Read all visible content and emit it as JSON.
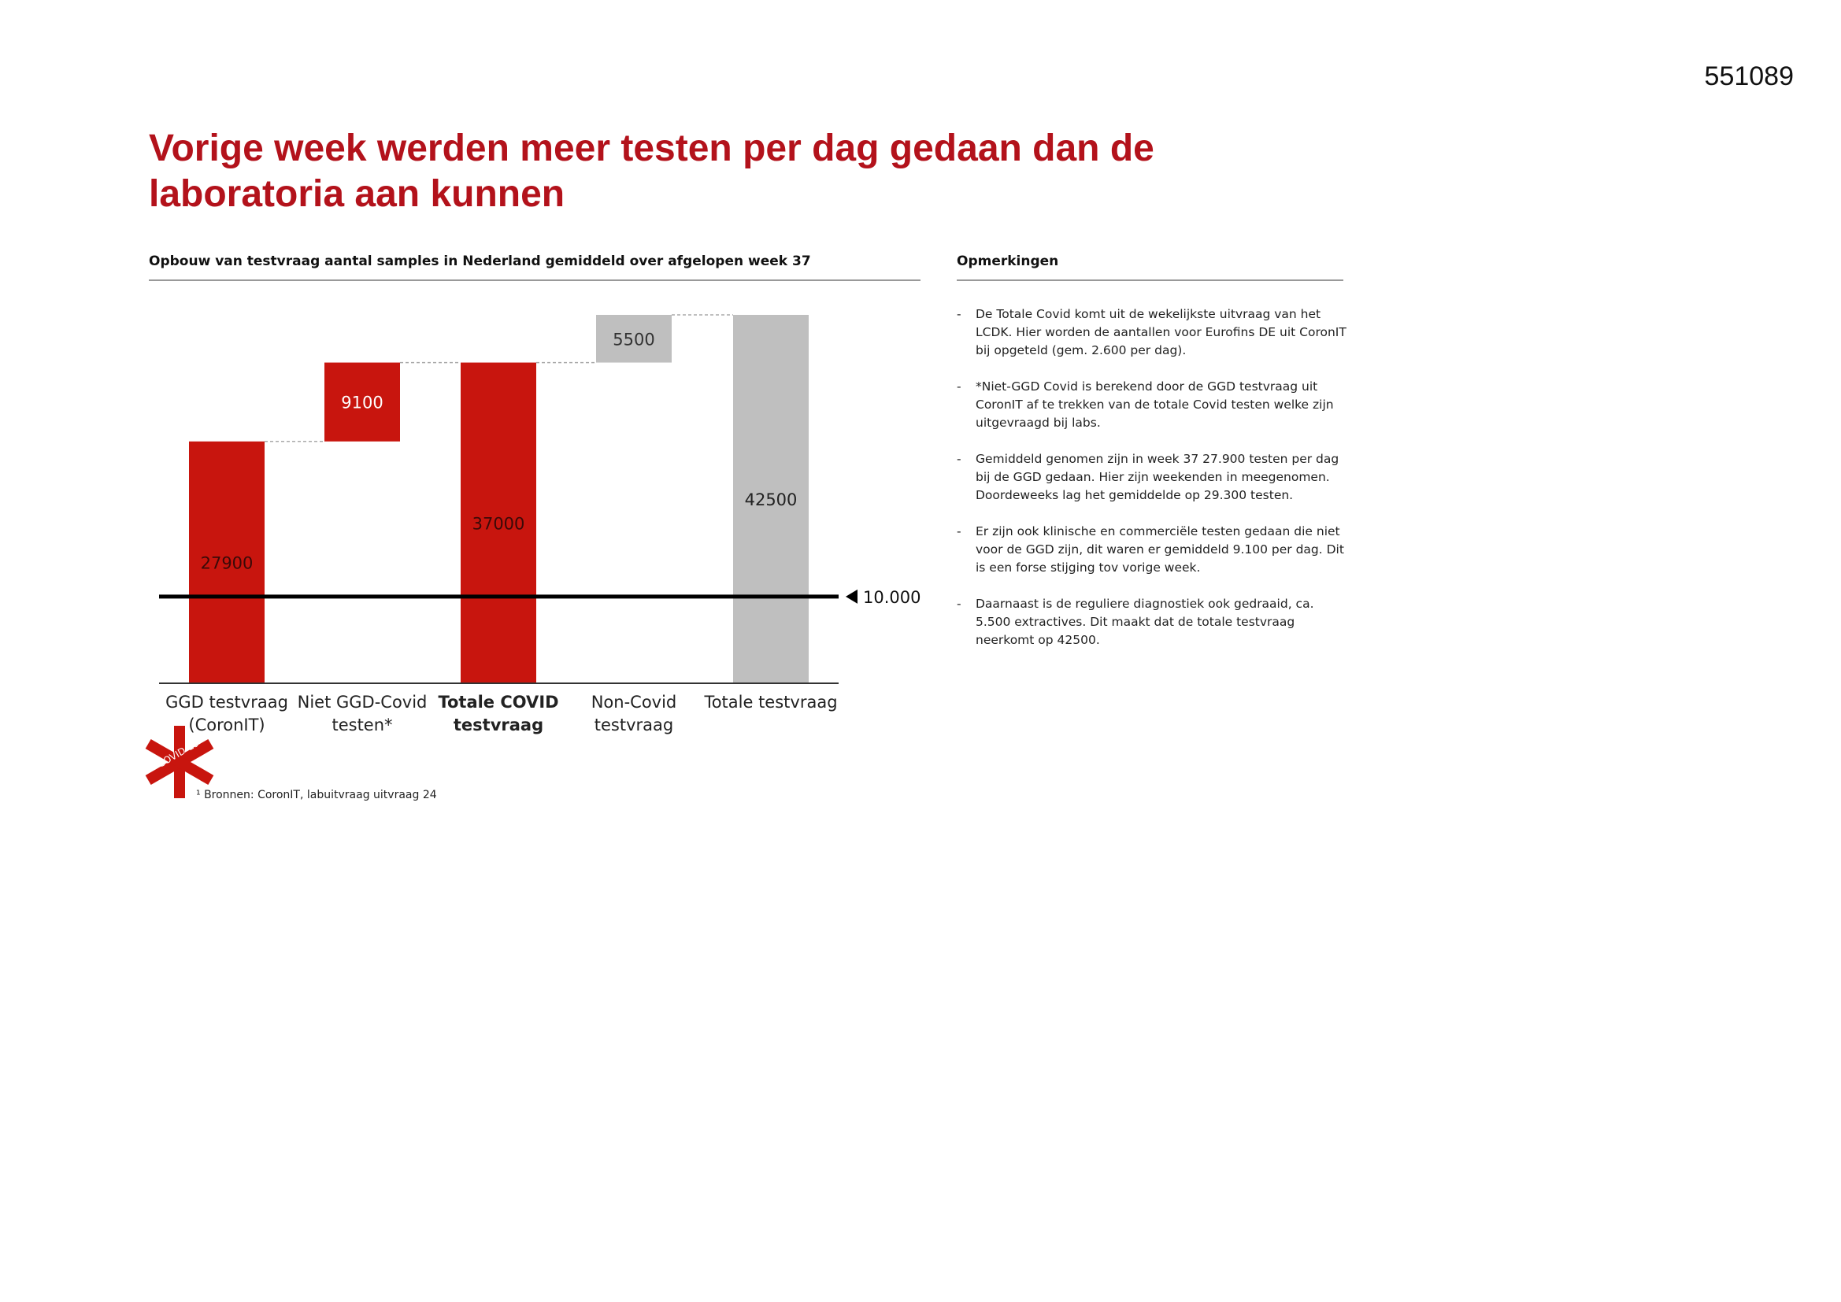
{
  "page_number": "551089",
  "title": "Vorige week werden meer testen per dag gedaan dan de laboratoria aan kunnen",
  "chart_data": {
    "type": "waterfall",
    "title": "Opbouw van testvraag aantal samples in Nederland gemiddeld over afgelopen week 37",
    "categories": [
      "GGD testvraag (CoronIT)",
      "Niet GGD-Covid testen*",
      "Totale COVID testvraag",
      "Non-Covid testvraag",
      "Totale testvraag"
    ],
    "values": [
      27900,
      9100,
      37000,
      5500,
      42500
    ],
    "kinds": [
      "increase",
      "increase",
      "total",
      "increase",
      "total"
    ],
    "colors": [
      "#c8150e",
      "#c8150e",
      "#c8150e",
      "#bfbfbf",
      "#bfbfbf"
    ],
    "label_colors": [
      "#3a0a08",
      "#ffffff",
      "#3a0a08",
      "#333333",
      "#222222"
    ],
    "bold_categories": [
      false,
      false,
      true,
      false,
      false
    ],
    "reference_line": {
      "value": 10000,
      "label": "10.000"
    },
    "footnote": "¹ Bronnen: CoronIT, labuitvraag uitvraag 24",
    "logo_text": "COVID-19"
  },
  "notes": {
    "title": "Opmerkingen",
    "items": [
      "De Totale Covid komt uit de wekelijkste uitvraag van het LCDK. Hier worden de aantallen voor Eurofins DE uit CoronIT bij opgeteld (gem. 2.600 per dag).",
      "*Niet-GGD Covid is berekend door de GGD testvraag uit CoronIT af te trekken van de totale Covid testen welke zijn uitgevraagd bij labs.",
      "Gemiddeld genomen zijn in week 37 27.900 testen per dag bij de GGD gedaan. Hier zijn weekenden in meegenomen. Doordeweeks lag het gemiddelde op 29.300 testen.",
      "Er zijn ook klinische en commerciële testen gedaan die niet voor de GGD zijn, dit waren er gemiddeld 9.100 per dag. Dit is een forse stijging tov vorige week.",
      "Daarnaast is de reguliere diagnostiek ook gedraaid, ca. 5.500 extractives. Dit maakt dat de totale testvraag neerkomt op 42500."
    ]
  }
}
